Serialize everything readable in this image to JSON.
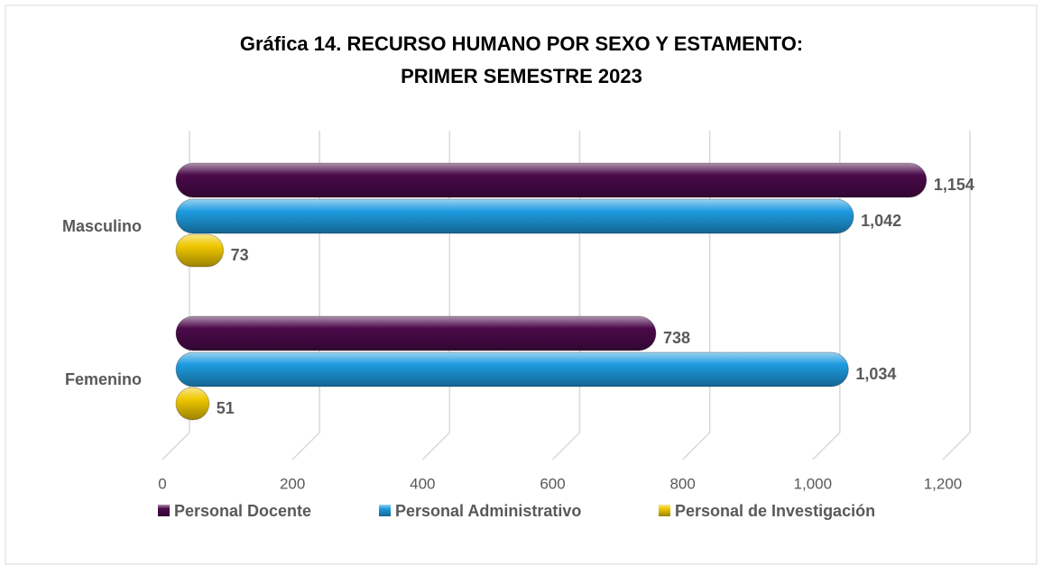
{
  "chart_data": {
    "type": "bar",
    "orientation": "horizontal",
    "title": "Gráfica 14. RECURSO HUMANO POR SEXO Y ESTAMENTO:",
    "subtitle": "PRIMER SEMESTRE 2023",
    "categories": [
      "Masculino",
      "Femenino"
    ],
    "series": [
      {
        "name": "Personal Docente",
        "color": "#4b0a4b",
        "values": [
          1154,
          738
        ],
        "value_labels": [
          "1,154",
          "738"
        ]
      },
      {
        "name": "Personal Administrativo",
        "color": "#1e9be0",
        "values": [
          1042,
          1034
        ],
        "value_labels": [
          "1,042",
          "1,034"
        ]
      },
      {
        "name": "Personal de Investigación",
        "color": "#f0c800",
        "values": [
          73,
          51
        ],
        "value_labels": [
          "73",
          "51"
        ]
      }
    ],
    "xlim": [
      0,
      1200
    ],
    "xticks": [
      0,
      200,
      400,
      600,
      800,
      {
        "value": 1000,
        "label": "1,000"
      },
      {
        "value": 1200,
        "label": "1,200"
      }
    ],
    "grid": true,
    "legend": "bottom"
  }
}
